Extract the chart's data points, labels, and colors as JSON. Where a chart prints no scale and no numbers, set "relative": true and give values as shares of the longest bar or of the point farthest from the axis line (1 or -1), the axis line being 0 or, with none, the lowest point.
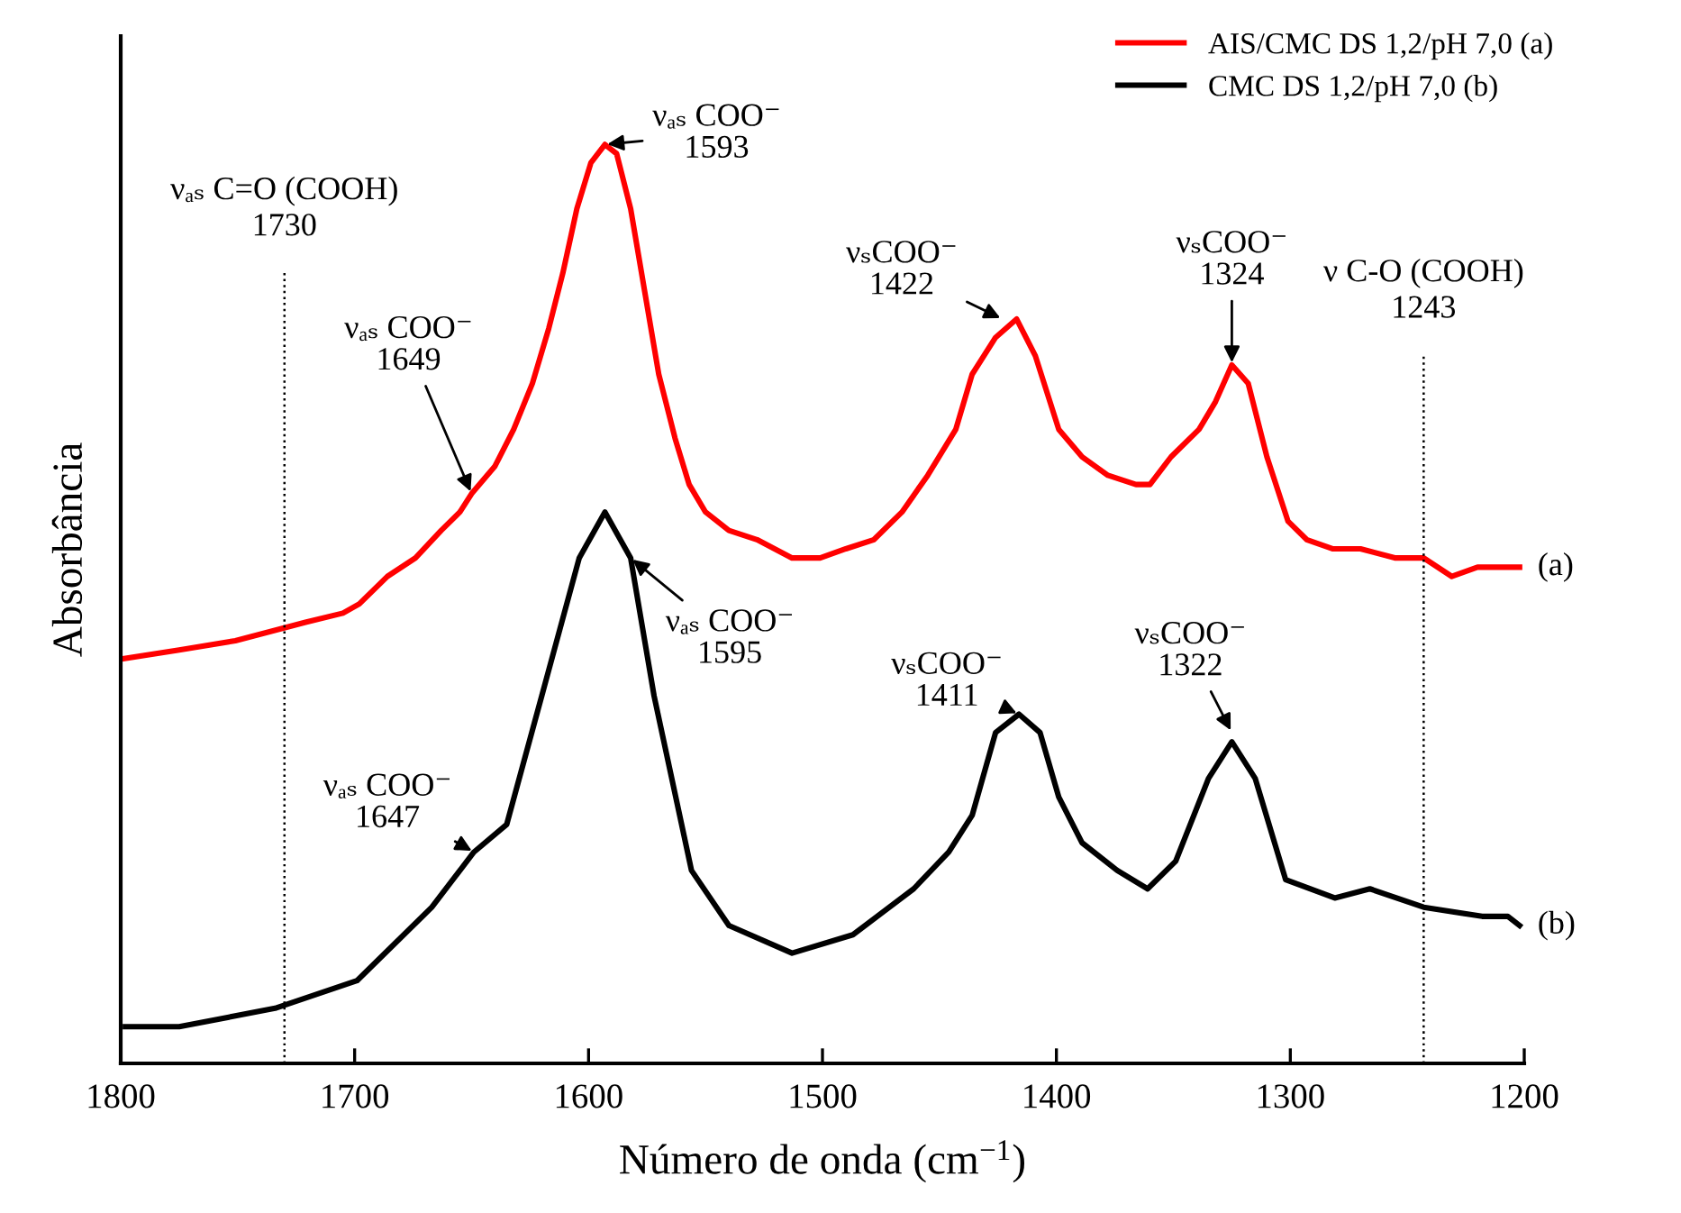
{
  "chart_data": {
    "type": "line",
    "relative": true,
    "xlabel": "Número de onda (cm$^{−1}$)",
    "ylabel": "Absorbância",
    "xlim": [
      1800,
      1200
    ],
    "xticks": [
      1800,
      1700,
      1600,
      1500,
      1400,
      1300,
      1200
    ],
    "legend": "top right",
    "grid": false,
    "line_style": "solid",
    "marker": "none",
    "series": [
      {
        "name": "AIS/CMC DS 1,2/pH 7,0 (a)",
        "color": "#ff0000",
        "x": [
          1800,
          1775,
          1751,
          1736,
          1721,
          1705,
          1698,
          1686,
          1674,
          1663,
          1655,
          1650,
          1640,
          1632,
          1624,
          1617,
          1611,
          1605,
          1599,
          1593,
          1588,
          1582,
          1576,
          1570,
          1563,
          1557,
          1550,
          1540,
          1528,
          1513,
          1501,
          1490,
          1478,
          1466,
          1455,
          1443,
          1436,
          1426,
          1417,
          1409,
          1399,
          1389,
          1378,
          1366,
          1360,
          1351,
          1339,
          1332,
          1325,
          1318,
          1310,
          1301,
          1293,
          1282,
          1270,
          1255,
          1243,
          1231,
          1220,
          1202
        ],
        "values": [
          0.44,
          0.45,
          0.46,
          0.47,
          0.48,
          0.49,
          0.5,
          0.53,
          0.55,
          0.58,
          0.6,
          0.62,
          0.65,
          0.69,
          0.74,
          0.8,
          0.86,
          0.93,
          0.98,
          1.0,
          0.99,
          0.93,
          0.84,
          0.75,
          0.68,
          0.63,
          0.6,
          0.58,
          0.57,
          0.55,
          0.55,
          0.56,
          0.57,
          0.6,
          0.64,
          0.69,
          0.75,
          0.79,
          0.81,
          0.77,
          0.69,
          0.66,
          0.64,
          0.63,
          0.63,
          0.66,
          0.69,
          0.72,
          0.76,
          0.74,
          0.66,
          0.59,
          0.57,
          0.56,
          0.56,
          0.55,
          0.55,
          0.53,
          0.54,
          0.54
        ]
      },
      {
        "name": "CMC DS 1,2/pH 7,0 (b)",
        "color": "#000000",
        "x": [
          1798,
          1775,
          1734,
          1699,
          1667,
          1649,
          1635,
          1620,
          1604,
          1593,
          1582,
          1572,
          1556,
          1540,
          1513,
          1487,
          1461,
          1446,
          1436,
          1426,
          1416,
          1407,
          1399,
          1389,
          1374,
          1361,
          1349,
          1335,
          1325,
          1315,
          1302,
          1281,
          1266,
          1243,
          1218,
          1207,
          1202
        ],
        "values": [
          0.04,
          0.04,
          0.06,
          0.09,
          0.17,
          0.23,
          0.26,
          0.4,
          0.55,
          0.6,
          0.55,
          0.4,
          0.21,
          0.15,
          0.12,
          0.14,
          0.19,
          0.23,
          0.27,
          0.36,
          0.38,
          0.36,
          0.29,
          0.24,
          0.21,
          0.19,
          0.22,
          0.31,
          0.35,
          0.31,
          0.2,
          0.18,
          0.19,
          0.17,
          0.16,
          0.16,
          0.15
        ]
      }
    ],
    "ref_lines": [
      {
        "axis": "x",
        "value": 1730,
        "label": "νₐₛ C=O (COOH)\n1730",
        "color": "#000000",
        "line_style": "dotted"
      },
      {
        "axis": "x",
        "value": 1243,
        "label": "ν C-O (COOH)\n1243",
        "color": "#000000",
        "line_style": "dotted"
      }
    ],
    "annotations": [
      {
        "text": "νₐₛ COO⁻\n1593",
        "x": 1593,
        "y": 1.0
      },
      {
        "text": "νₐₛ COO⁻\n1649",
        "x": 1650,
        "y": 0.62
      },
      {
        "text": "νₛCOO⁻\n1422",
        "x": 1423,
        "y": 0.81
      },
      {
        "text": "νₛCOO⁻\n1324",
        "x": 1325,
        "y": 0.76
      },
      {
        "text": "νₐₛ COO⁻\n1595",
        "x": 1582,
        "y": 0.55
      },
      {
        "text": "νₐₛ COO⁻\n1647",
        "x": 1649,
        "y": 0.23
      },
      {
        "text": "νₛCOO⁻\n1411",
        "x": 1416,
        "y": 0.38
      },
      {
        "text": "νₛCOO⁻\n1322",
        "x": 1325,
        "y": 0.36
      },
      {
        "text": "(a)",
        "x": 1202,
        "y": 0.54
      },
      {
        "text": "(b)",
        "x": 1202,
        "y": 0.15
      }
    ]
  }
}
